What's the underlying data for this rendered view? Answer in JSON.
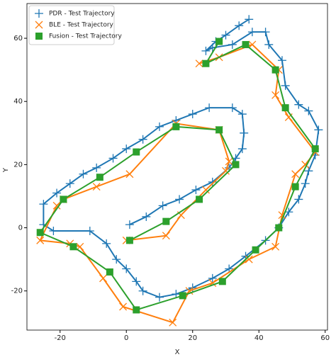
{
  "chart_data": {
    "type": "line",
    "x_label": "X",
    "y_label": "Y",
    "xlim": [
      -30,
      60.7
    ],
    "ylim": [
      -32.4,
      71
    ],
    "xticks": [
      -20,
      0,
      20,
      40,
      60
    ],
    "yticks": [
      -20,
      0,
      20,
      40,
      60
    ],
    "legend": "upper left",
    "series": [
      {
        "name": "PDR - Test Trajectory",
        "color": "#1f77b4",
        "marker": "plus",
        "x": [
          1,
          6,
          11,
          16,
          21,
          26,
          31,
          33,
          35,
          35.5,
          35,
          32,
          25,
          20,
          15,
          10,
          5,
          0,
          -4,
          -9,
          -13,
          -17,
          -21,
          -25,
          -25,
          -22,
          -11,
          -6,
          -3,
          0,
          3,
          5,
          10,
          15,
          20,
          26,
          31,
          36,
          42,
          46,
          49,
          52,
          54,
          55,
          57,
          58,
          55,
          52,
          48,
          47,
          43,
          42,
          38,
          32,
          26,
          24,
          27,
          30,
          34,
          37
        ],
        "values": [
          1,
          3.5,
          7,
          9,
          12,
          14.5,
          19,
          22,
          25,
          30,
          36,
          38,
          38,
          36,
          34,
          32,
          28,
          25,
          22,
          19,
          17,
          14,
          11,
          7.5,
          1,
          -1,
          -1,
          -5,
          -10,
          -13,
          -17,
          -20,
          -22,
          -21,
          -19,
          -16,
          -13,
          -9,
          -4,
          0,
          5,
          9,
          14,
          18,
          23,
          31,
          37,
          39,
          45,
          53,
          58,
          62,
          62,
          58,
          57,
          56,
          59,
          61,
          64,
          66
        ]
      },
      {
        "name": "BLE - Test Trajectory",
        "color": "#ff7f0e",
        "marker": "cross",
        "x": [
          0,
          12,
          16.5,
          24,
          30,
          31,
          28,
          15,
          1,
          -9,
          -19,
          -21,
          -26,
          -17,
          -14,
          -7,
          -1,
          14,
          19,
          26,
          37,
          45,
          47,
          51,
          54,
          57,
          49,
          45,
          46,
          38,
          28,
          22
        ],
        "values": [
          -4,
          -2.5,
          4,
          12,
          18,
          21,
          31,
          33,
          17,
          13,
          9,
          7,
          -4,
          -5,
          -6,
          -16,
          -25,
          -30,
          -20,
          -17.5,
          -10,
          -6,
          4,
          17,
          20,
          24,
          35,
          42,
          50,
          58,
          54,
          52
        ]
      },
      {
        "name": "Fusion - Test Trajectory",
        "color": "#2ca02c",
        "marker": "square",
        "x": [
          1,
          12,
          22,
          33,
          28,
          15,
          3,
          -8,
          -19,
          -26,
          -16,
          -5,
          3,
          17,
          29,
          39,
          46,
          51,
          57,
          48,
          45,
          36,
          24,
          28
        ],
        "values": [
          -4,
          2,
          9,
          20,
          31,
          32,
          24,
          16,
          9,
          -1.5,
          -6,
          -14,
          -26,
          -21.5,
          -17,
          -7,
          0,
          13,
          25,
          38,
          50,
          58,
          52,
          59
        ]
      }
    ]
  }
}
